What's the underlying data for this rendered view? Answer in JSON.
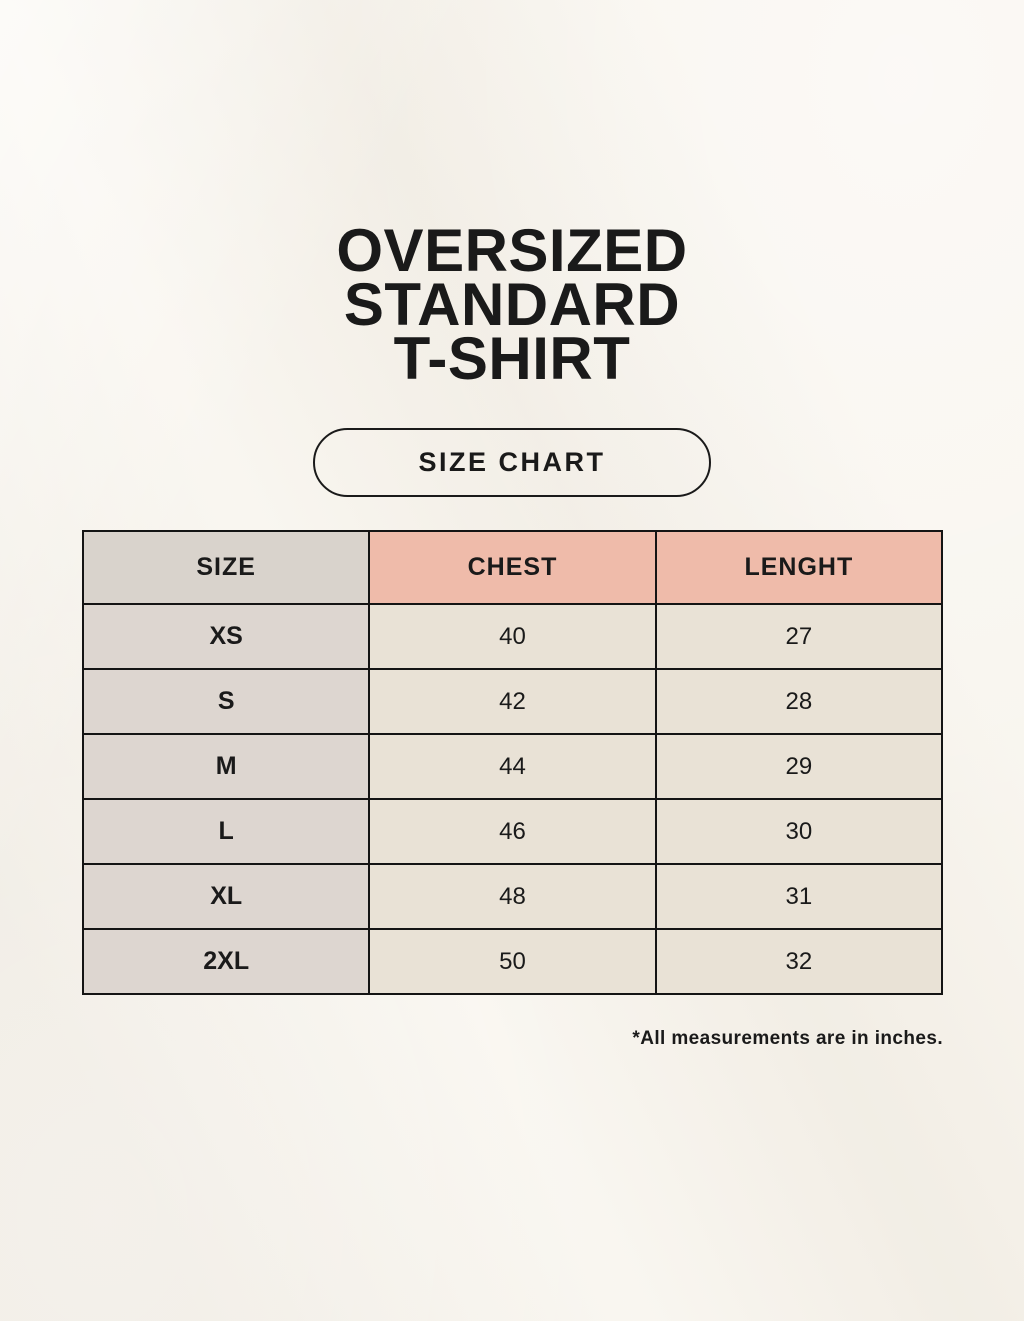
{
  "page": {
    "title_lines": [
      "OVERSIZED",
      "STANDARD",
      "T-SHIRT"
    ],
    "size_chart_label": "SIZE CHART",
    "footnote": "*All measurements are in inches."
  },
  "chart_data": {
    "type": "table",
    "title": "OVERSIZED STANDARD T-SHIRT — SIZE CHART",
    "columns": [
      "SIZE",
      "CHEST",
      "LENGHT"
    ],
    "rows": [
      {
        "size": "XS",
        "chest": 40,
        "lenght": 27
      },
      {
        "size": "S",
        "chest": 42,
        "lenght": 28
      },
      {
        "size": "M",
        "chest": 44,
        "lenght": 29
      },
      {
        "size": "L",
        "chest": 46,
        "lenght": 30
      },
      {
        "size": "XL",
        "chest": 48,
        "lenght": 31
      },
      {
        "size": "2XL",
        "chest": 50,
        "lenght": 32
      }
    ],
    "units": "inches"
  },
  "colors": {
    "background": "#f7f3eb",
    "ink": "#1a1a1a",
    "border": "#141414",
    "accent": "#efbbaa",
    "cell_gray_header": "#d9d3cc",
    "cell_gray_body": "#ddd6d0",
    "cell_cream": "#e9e2d6"
  }
}
